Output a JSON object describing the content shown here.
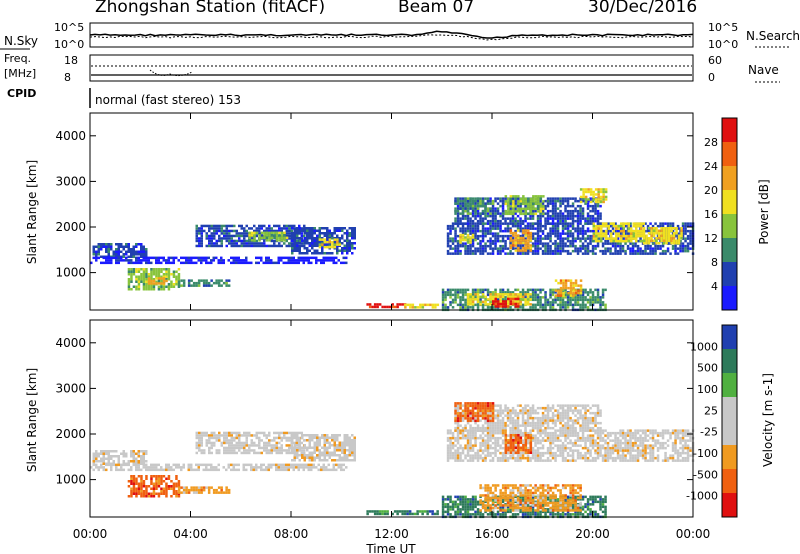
{
  "header": {
    "station": "Zhongshan Station (fitACF)",
    "beam": "Beam 07",
    "date": "30/Dec/2016"
  },
  "noise_panel": {
    "left_label": "N.Sky",
    "right_label": "N.Search",
    "left_ticks": [
      "10^5",
      "10^0"
    ],
    "right_ticks": [
      "10^5",
      "10^0"
    ]
  },
  "freq_panel": {
    "left_label_line1": "Freq.",
    "left_label_line2": "[MHz]",
    "left_ticks": [
      "18",
      "8"
    ],
    "right_label": "Nave",
    "right_ticks": [
      "60",
      "0"
    ]
  },
  "cpid_panel": {
    "label": "CPID",
    "text": "normal (fast stereo) 153"
  },
  "x_axis": {
    "label": "Time UT",
    "ticks": [
      "00:00",
      "04:00",
      "08:00",
      "12:00",
      "16:00",
      "20:00",
      "00:00"
    ]
  },
  "colors": {
    "power": [
      "#1a1aff",
      "#2040b0",
      "#3a8a6a",
      "#88c43c",
      "#f0e020",
      "#f0a020",
      "#f06010",
      "#e01010"
    ],
    "velocity": [
      "#e01010",
      "#f06010",
      "#f09a20",
      "#c8c8c8",
      "#c8c8c8",
      "#50b040",
      "#2d7a5a",
      "#2040b0"
    ]
  },
  "chart_data": [
    {
      "type": "heatmap",
      "name": "power",
      "ylabel": "Slant Range [km]",
      "xlabel": "",
      "yticks": [
        "4000",
        "3000",
        "2000",
        "1000"
      ],
      "ylim": [
        180,
        4500
      ],
      "xlim": [
        0,
        24
      ],
      "colorbar_label": "Power [dB]",
      "colorbar_ticks": [
        "28",
        "24",
        "20",
        "16",
        "12",
        "8",
        "4"
      ],
      "patches": [
        {
          "t": [
            0.1,
            2.2
          ],
          "r": [
            1350,
            1650
          ],
          "level": 1
        },
        {
          "t": [
            0.0,
            10.2
          ],
          "r": [
            1200,
            1350
          ],
          "level": 0
        },
        {
          "t": [
            1.5,
            3.5
          ],
          "r": [
            650,
            1100
          ],
          "level": 3
        },
        {
          "t": [
            2.3,
            3.0
          ],
          "r": [
            750,
            900
          ],
          "level": 5
        },
        {
          "t": [
            3.5,
            5.5
          ],
          "r": [
            700,
            850
          ],
          "level": 2
        },
        {
          "t": [
            4.2,
            8.5
          ],
          "r": [
            1600,
            2050
          ],
          "level": 1
        },
        {
          "t": [
            6.3,
            7.8
          ],
          "r": [
            1700,
            1900
          ],
          "level": 3
        },
        {
          "t": [
            8.0,
            10.5
          ],
          "r": [
            1400,
            2000
          ],
          "level": 1
        },
        {
          "t": [
            9.1,
            9.9
          ],
          "r": [
            1550,
            1750
          ],
          "level": 4
        },
        {
          "t": [
            11.0,
            12.5
          ],
          "r": [
            230,
            330
          ],
          "level": 7
        },
        {
          "t": [
            12.5,
            13.8
          ],
          "r": [
            250,
            320
          ],
          "level": 4
        },
        {
          "t": [
            14.0,
            20.5
          ],
          "r": [
            200,
            650
          ],
          "level": 2
        },
        {
          "t": [
            15.0,
            17.5
          ],
          "r": [
            300,
            550
          ],
          "level": 4
        },
        {
          "t": [
            16.0,
            17.0
          ],
          "r": [
            250,
            450
          ],
          "level": 7
        },
        {
          "t": [
            18.5,
            19.5
          ],
          "r": [
            500,
            850
          ],
          "level": 5
        },
        {
          "t": [
            14.2,
            24.0
          ],
          "r": [
            1400,
            2100
          ],
          "level": 1
        },
        {
          "t": [
            14.7,
            15.3
          ],
          "r": [
            1650,
            1850
          ],
          "level": 4
        },
        {
          "t": [
            16.7,
            17.5
          ],
          "r": [
            1500,
            1950
          ],
          "level": 5
        },
        {
          "t": [
            20.0,
            22.0
          ],
          "r": [
            1700,
            2100
          ],
          "level": 4
        },
        {
          "t": [
            22.0,
            23.5
          ],
          "r": [
            1650,
            2000
          ],
          "level": 4
        },
        {
          "t": [
            14.5,
            20.3
          ],
          "r": [
            2100,
            2650
          ],
          "level": 1
        },
        {
          "t": [
            16.5,
            18.0
          ],
          "r": [
            2300,
            2700
          ],
          "level": 3
        },
        {
          "t": [
            19.5,
            20.5
          ],
          "r": [
            2550,
            2850
          ],
          "level": 4
        },
        {
          "t": [
            14.5,
            16.0
          ],
          "r": [
            2300,
            2650
          ],
          "level": 2
        }
      ]
    },
    {
      "type": "heatmap",
      "name": "velocity",
      "ylabel": "Slant Range [km]",
      "xlabel": "Time UT",
      "yticks": [
        "4000",
        "3000",
        "2000",
        "1000"
      ],
      "ylim": [
        180,
        4500
      ],
      "xlim": [
        0,
        24
      ],
      "colorbar_label": "Velocity [m s-1]",
      "colorbar_ticks": [
        "1000",
        "500",
        "100",
        "25",
        "-25",
        "-100",
        "-500",
        "-1000"
      ],
      "patches": [
        {
          "t": [
            0.1,
            2.2
          ],
          "r": [
            1350,
            1650
          ],
          "level": 3
        },
        {
          "t": [
            0.0,
            10.2
          ],
          "r": [
            1200,
            1350
          ],
          "level": 3
        },
        {
          "t": [
            1.5,
            3.5
          ],
          "r": [
            650,
            1100
          ],
          "level": 1
        },
        {
          "t": [
            3.5,
            5.5
          ],
          "r": [
            700,
            850
          ],
          "level": 2
        },
        {
          "t": [
            4.2,
            8.5
          ],
          "r": [
            1600,
            2050
          ],
          "level": 3
        },
        {
          "t": [
            8.0,
            10.5
          ],
          "r": [
            1400,
            2000
          ],
          "level": 3
        },
        {
          "t": [
            11.0,
            13.8
          ],
          "r": [
            230,
            330
          ],
          "level": 6
        },
        {
          "t": [
            14.0,
            20.5
          ],
          "r": [
            200,
            650
          ],
          "level": 6
        },
        {
          "t": [
            15.5,
            19.5
          ],
          "r": [
            350,
            900
          ],
          "level": 2
        },
        {
          "t": [
            14.2,
            24.0
          ],
          "r": [
            1400,
            2100
          ],
          "level": 3
        },
        {
          "t": [
            14.5,
            20.3
          ],
          "r": [
            2100,
            2650
          ],
          "level": 3
        },
        {
          "t": [
            14.5,
            16.0
          ],
          "r": [
            2300,
            2700
          ],
          "level": 1
        },
        {
          "t": [
            16.5,
            17.5
          ],
          "r": [
            1600,
            2000
          ],
          "level": 1
        }
      ]
    }
  ]
}
